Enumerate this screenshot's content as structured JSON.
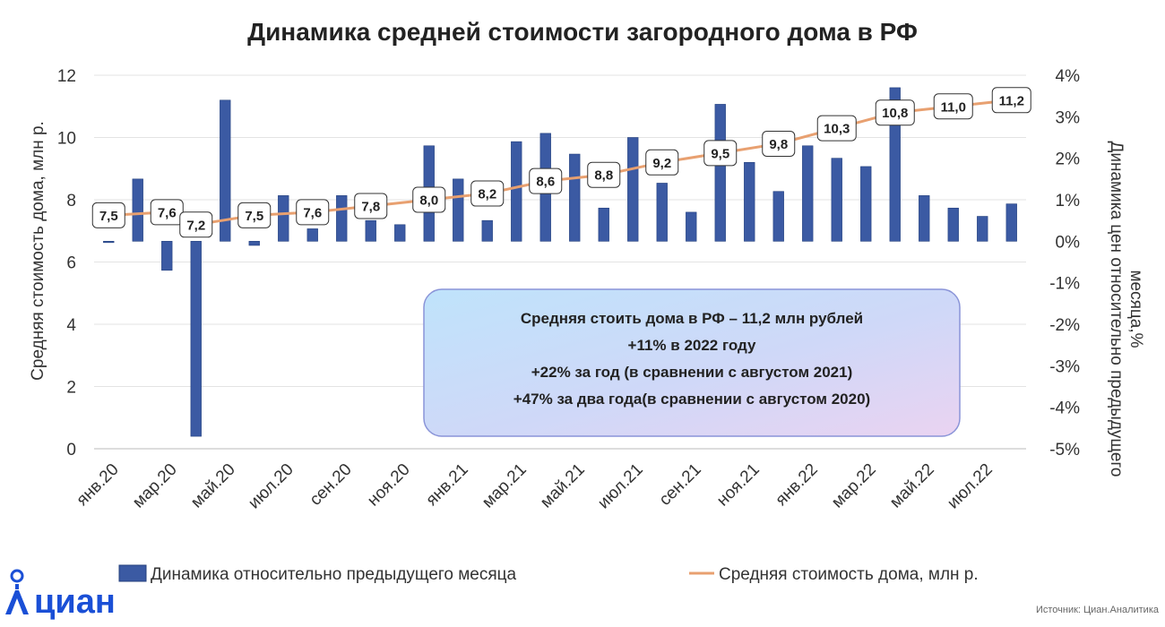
{
  "chart_data": {
    "type": "bar",
    "title": "Динамика  средней стоимости загородного дома в РФ",
    "ylabel": "Средняя стоимость дома, млн р.",
    "y2label_line1": "Динамика цен относительно предыдущего",
    "y2label_line2": "месяца,%",
    "ylim": [
      0,
      12
    ],
    "y2lim": [
      -5,
      4
    ],
    "y_ticks": [
      "0",
      "2",
      "4",
      "6",
      "8",
      "10",
      "12"
    ],
    "y2_ticks": [
      "-5%",
      "-4%",
      "-3%",
      "-2%",
      "-1%",
      "0%",
      "1%",
      "2%",
      "3%",
      "4%"
    ],
    "x_tick_labels": [
      "янв.20",
      "мар.20",
      "май.20",
      "июл.20",
      "сен.20",
      "ноя.20",
      "янв.21",
      "мар.21",
      "май.21",
      "июл.21",
      "сен.21",
      "ноя.21",
      "янв.22",
      "мар.22",
      "май.22",
      "июл.22"
    ],
    "months": 32,
    "series": [
      {
        "name": "Динамика относительно предыдущего месяца",
        "axis": "right",
        "color": "#3b5aa3",
        "values": [
          0.0,
          1.5,
          -0.7,
          -4.7,
          3.4,
          -0.1,
          1.1,
          0.3,
          1.1,
          0.5,
          0.4,
          2.3,
          1.5,
          0.5,
          2.4,
          2.6,
          2.1,
          0.8,
          2.5,
          1.4,
          0.7,
          3.3,
          1.9,
          1.2,
          2.3,
          2.0,
          1.8,
          3.7,
          1.1,
          0.8,
          0.6,
          0.9
        ]
      },
      {
        "name": "Средняя стоимость дома, млн р.",
        "axis": "left",
        "type": "line",
        "color": "#e8a070",
        "values": [
          7.5,
          7.6,
          7.2,
          7.5,
          7.6,
          7.8,
          8.0,
          8.2,
          8.6,
          8.8,
          9.2,
          9.5,
          9.8,
          10.3,
          10.8,
          11.0,
          11.2
        ],
        "month_index": [
          0,
          2,
          3,
          5,
          7,
          9,
          11,
          13,
          15,
          17,
          19,
          21,
          23,
          25,
          27,
          29,
          31
        ],
        "labels": [
          "7,5",
          "7,6",
          "7,2",
          "7,5",
          "7,6",
          "7,8",
          "8,0",
          "8,2",
          "8,6",
          "8,8",
          "9,2",
          "9,5",
          "9,8",
          "10,3",
          "10,8",
          "11,0",
          "11,2"
        ]
      }
    ],
    "annotation": [
      "Средняя стоить дома в РФ – 11,2 млн рублей",
      "+11% в 2022 году",
      "+22% за год (в сравнении с августом 2021)",
      "+47% за два года(в сравнении с августом 2020)"
    ],
    "legend": {
      "bar_label": "Динамика относительно предыдущего месяца",
      "line_label": "Средняя стоимость дома, млн р.",
      "position": "bottom"
    },
    "grid": true
  },
  "footer": {
    "logo_text": "циан",
    "source": "Источник: Циан.Аналитика"
  },
  "colors": {
    "bar": "#3b5aa3",
    "line": "#e8a070",
    "grid": "#e3e3e3",
    "logo": "#1a4fd6"
  }
}
